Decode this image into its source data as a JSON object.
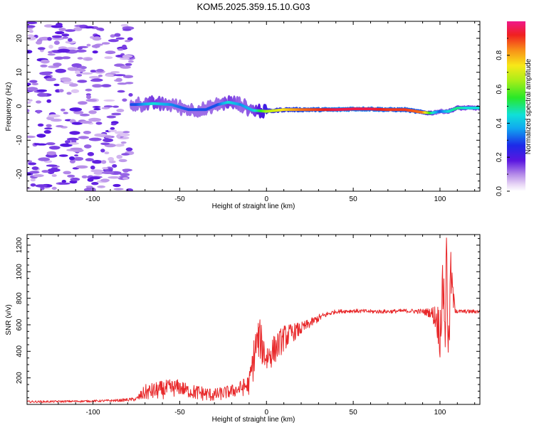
{
  "figure_title": "KOM5.2025.359.15.10.G03",
  "colors": {
    "snr_line": "#e8282a",
    "ridge_low": "#c39be8",
    "ridge_mid": "#5a16e0",
    "ridge_core": "#e8283a"
  },
  "chart_data": [
    {
      "type": "heatmap",
      "title": "KOM5.2025.359.15.10.G03",
      "xlabel": "Height of straight line (km)",
      "ylabel": "Frequency (Hz)",
      "xlim": [
        -138,
        123
      ],
      "ylim": [
        -25,
        25
      ],
      "xticks": [
        -100,
        -50,
        0,
        50,
        100
      ],
      "yticks": [
        -20,
        -10,
        0,
        10,
        20
      ],
      "colorbar": {
        "label": "Normalized spectral amplitude",
        "range": [
          0,
          1
        ],
        "ticks": [
          0.0,
          0.2,
          0.4,
          0.6,
          0.8
        ],
        "colormap": "rainbow (white-violet-blue-cyan-green-yellow-red-magenta)"
      },
      "ridge": {
        "description": "Frequency of main spectral peak vs height",
        "x": [
          -75,
          -65,
          -55,
          -45,
          -35,
          -28,
          -22,
          -15,
          -8,
          0,
          10,
          20,
          30,
          40,
          50,
          60,
          70,
          80,
          90,
          95,
          100,
          105,
          110,
          115,
          120
        ],
        "freq": [
          0.5,
          0.8,
          0.5,
          -1.0,
          -1.0,
          0.5,
          1.2,
          0.5,
          -1.2,
          -1.5,
          -1.0,
          -1.0,
          -1.0,
          -1.0,
          -0.8,
          -0.8,
          -1.0,
          -1.0,
          -1.8,
          -2.0,
          -1.5,
          -1.5,
          -0.5,
          -0.5,
          -0.5
        ],
        "amplitude": [
          0.3,
          0.45,
          0.35,
          0.3,
          0.3,
          0.3,
          0.45,
          0.35,
          0.4,
          0.65,
          0.75,
          0.85,
          0.9,
          0.95,
          0.95,
          0.95,
          0.9,
          0.9,
          0.85,
          0.5,
          0.3,
          0.45,
          0.5,
          0.45,
          0.45
        ]
      },
      "noise_region": "scattered low-amplitude (0.05-0.2) blobs for heights -138 to -78 km across all frequencies"
    },
    {
      "type": "line",
      "xlabel": "Height of straight line (km)",
      "ylabel": "SNR (v/v)",
      "xlim": [
        -138,
        123
      ],
      "ylim": [
        0,
        1280
      ],
      "xticks": [
        -100,
        -50,
        0,
        50,
        100
      ],
      "yticks": [
        200,
        400,
        600,
        800,
        1000,
        1200
      ],
      "series": [
        {
          "name": "SNR",
          "x": [
            -138,
            -120,
            -100,
            -85,
            -75,
            -70,
            -60,
            -55,
            -50,
            -45,
            -40,
            -35,
            -30,
            -20,
            -15,
            -10,
            -8,
            -6,
            -4,
            -2,
            0,
            5,
            10,
            15,
            20,
            25,
            30,
            35,
            40,
            50,
            60,
            70,
            80,
            90,
            95,
            98,
            100,
            101,
            102,
            103,
            104,
            105,
            106,
            108,
            110,
            115,
            123
          ],
          "values": [
            20,
            22,
            25,
            30,
            40,
            90,
            110,
            120,
            130,
            100,
            90,
            80,
            70,
            100,
            120,
            150,
            300,
            450,
            500,
            420,
            350,
            420,
            500,
            540,
            570,
            610,
            650,
            680,
            700,
            705,
            700,
            700,
            705,
            700,
            690,
            650,
            550,
            750,
            900,
            600,
            1200,
            300,
            1000,
            760,
            700,
            700,
            700
          ],
          "noise_amplitude": [
            8,
            8,
            8,
            10,
            15,
            60,
            70,
            70,
            60,
            50,
            60,
            55,
            50,
            50,
            60,
            80,
            150,
            150,
            150,
            150,
            120,
            110,
            100,
            70,
            50,
            35,
            30,
            20,
            15,
            15,
            15,
            15,
            15,
            20,
            40,
            120,
            200,
            200,
            250,
            300,
            350,
            300,
            200,
            80,
            15,
            15,
            15
          ]
        }
      ]
    }
  ]
}
